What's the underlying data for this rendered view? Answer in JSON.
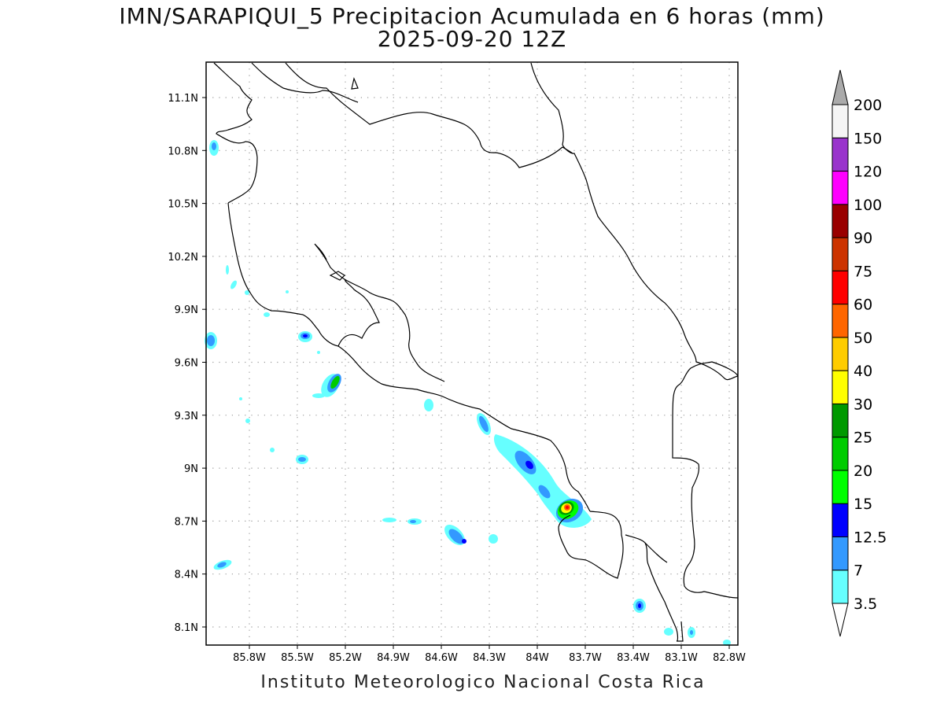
{
  "title": {
    "line1": "IMN/SARAPIQUI_5 Precipitacion Acumulada en 6 horas (mm)",
    "line2": "2025-09-20 12Z"
  },
  "footer": "Instituto Meteorologico Nacional Costa Rica",
  "map": {
    "lon_range": [
      -86.1,
      -82.4
    ],
    "lat_range": [
      8.0,
      11.3
    ],
    "lon_ticks": [
      {
        "value": -85.8,
        "label": "85.8W"
      },
      {
        "value": -85.5,
        "label": "85.5W"
      },
      {
        "value": -85.2,
        "label": "85.2W"
      },
      {
        "value": -84.9,
        "label": "84.9W"
      },
      {
        "value": -84.6,
        "label": "84.6W"
      },
      {
        "value": -84.3,
        "label": "84.3W"
      },
      {
        "value": -84.0,
        "label": "84W"
      },
      {
        "value": -83.7,
        "label": "83.7W"
      },
      {
        "value": -83.4,
        "label": "83.4W"
      },
      {
        "value": -83.1,
        "label": "83.1W"
      },
      {
        "value": -82.8,
        "label": "82.8W"
      }
    ],
    "lat_ticks": [
      {
        "value": 11.1,
        "label": "11.1N"
      },
      {
        "value": 10.8,
        "label": "10.8N"
      },
      {
        "value": 10.5,
        "label": "10.5N"
      },
      {
        "value": 10.2,
        "label": "10.2N"
      },
      {
        "value": 9.9,
        "label": "9.9N"
      },
      {
        "value": 9.6,
        "label": "9.6N"
      },
      {
        "value": 9.3,
        "label": "9.3N"
      },
      {
        "value": 9.0,
        "label": "9N"
      },
      {
        "value": 8.7,
        "label": "8.7N"
      },
      {
        "value": 8.4,
        "label": "8.4N"
      },
      {
        "value": 8.1,
        "label": "8.1N"
      }
    ],
    "grid": true
  },
  "colorbar": {
    "levels": [
      {
        "label": "3.5",
        "color": "#66ffff"
      },
      {
        "label": "7",
        "color": "#3399ff"
      },
      {
        "label": "12.5",
        "color": "#0000ff"
      },
      {
        "label": "15",
        "color": "#00ff00"
      },
      {
        "label": "20",
        "color": "#00cc00"
      },
      {
        "label": "25",
        "color": "#009900"
      },
      {
        "label": "30",
        "color": "#ffff00"
      },
      {
        "label": "40",
        "color": "#ffcc00"
      },
      {
        "label": "50",
        "color": "#ff6600"
      },
      {
        "label": "60",
        "color": "#ff0000"
      },
      {
        "label": "75",
        "color": "#cc3300"
      },
      {
        "label": "90",
        "color": "#990000"
      },
      {
        "label": "100",
        "color": "#ff00ff"
      },
      {
        "label": "120",
        "color": "#9933cc"
      },
      {
        "label": "150",
        "color": "#f5f5f5"
      },
      {
        "label": "200",
        "color": ""
      }
    ],
    "over_color": "#aaaaaa",
    "under_color": "#ffffff"
  }
}
